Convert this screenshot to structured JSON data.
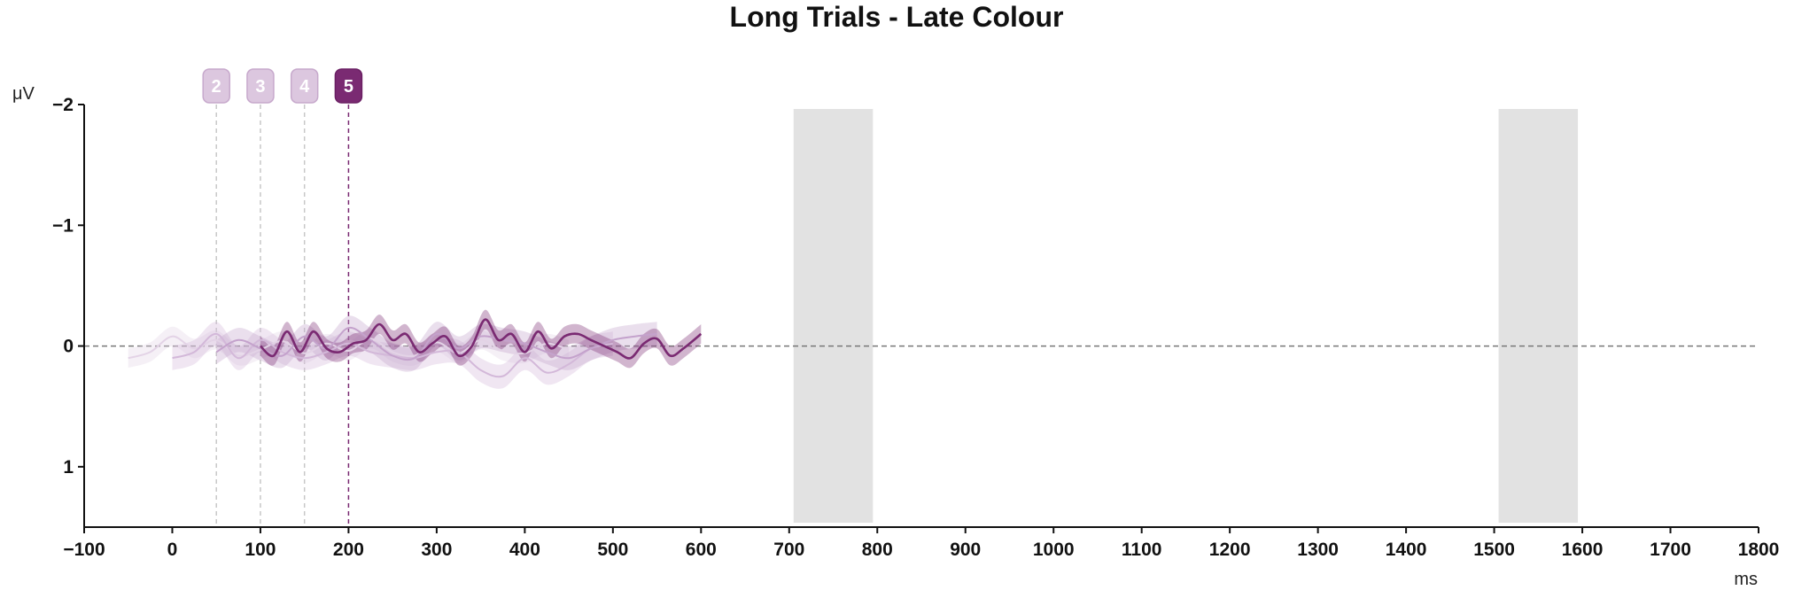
{
  "chart_data": {
    "type": "line",
    "title": "Long Trials - Late Colour",
    "xlabel": "ms",
    "ylabel": "μV",
    "xlim": [
      -100,
      1800
    ],
    "ylim": [
      1.5,
      -2
    ],
    "y_inverted": true,
    "x_ticks": [
      -100,
      0,
      100,
      200,
      300,
      400,
      500,
      600,
      700,
      800,
      900,
      1000,
      1100,
      1200,
      1300,
      1400,
      1500,
      1600,
      1700,
      1800
    ],
    "y_ticks": [
      -2,
      -1,
      0,
      1
    ],
    "x_tick_labels": [
      "−100",
      "0",
      "100",
      "200",
      "300",
      "400",
      "500",
      "600",
      "700",
      "800",
      "900",
      "1000",
      "1100",
      "1200",
      "1300",
      "1400",
      "1500",
      "1600",
      "1700",
      "1800"
    ],
    "y_tick_labels": [
      "−2",
      "−1",
      "0",
      "1"
    ],
    "zero_line": true,
    "grid": false,
    "shaded_regions": [
      {
        "x": [
          705,
          795
        ]
      },
      {
        "x": [
          1505,
          1595
        ]
      }
    ],
    "markers": [
      {
        "label": "2",
        "x": 50,
        "active": false
      },
      {
        "label": "3",
        "x": 100,
        "active": false
      },
      {
        "label": "4",
        "x": 150,
        "active": false
      },
      {
        "label": "5",
        "x": 200,
        "active": true
      }
    ],
    "series": [
      {
        "x": [
          -50,
          -25,
          0,
          25,
          50,
          75,
          100,
          125,
          150,
          175,
          200,
          225,
          250,
          275,
          300,
          325,
          350,
          375,
          400,
          425,
          450
        ],
        "values": [
          0.1,
          0.05,
          -0.08,
          0.02,
          -0.05,
          0.08,
          0.03,
          -0.04,
          0.06,
          -0.02,
          0.04,
          -0.06,
          0.05,
          0.08,
          -0.03,
          0.06,
          -0.05,
          0.04,
          0.06,
          -0.02,
          0.03
        ],
        "color": "#e3d3e6",
        "band": 0.08
      },
      {
        "x": [
          0,
          25,
          50,
          75,
          100,
          125,
          150,
          175,
          200,
          225,
          250,
          275,
          300,
          325,
          350,
          375,
          400,
          425,
          450,
          475,
          500
        ],
        "values": [
          0.1,
          0.05,
          -0.1,
          0.1,
          -0.05,
          0.05,
          0.1,
          0.05,
          -0.02,
          0.05,
          0.08,
          0.1,
          0.05,
          0.05,
          0.2,
          0.25,
          0.1,
          0.22,
          0.15,
          0.02,
          -0.02
        ],
        "color": "#d3b8d9",
        "band": 0.1
      },
      {
        "x": [
          50,
          75,
          100,
          125,
          150,
          175,
          200,
          225,
          250,
          275,
          300,
          325,
          350,
          375,
          400,
          425,
          450,
          475,
          500,
          525,
          550
        ],
        "values": [
          0.05,
          -0.05,
          0.02,
          0.08,
          -0.08,
          0.02,
          -0.15,
          -0.05,
          0.08,
          0.1,
          -0.1,
          0.02,
          -0.08,
          -0.05,
          -0.02,
          0.05,
          0.1,
          0.02,
          -0.05,
          -0.08,
          -0.1
        ],
        "color": "#c4a2cc",
        "band": 0.1
      },
      {
        "x": [
          100,
          115,
          130,
          145,
          160,
          175,
          190,
          205,
          220,
          235,
          250,
          265,
          280,
          295,
          310,
          325,
          340,
          355,
          370,
          385,
          400,
          415,
          430,
          445,
          460,
          475,
          490,
          505,
          520,
          535,
          550,
          565,
          580,
          600
        ],
        "values": [
          0.0,
          0.08,
          -0.12,
          0.05,
          -0.12,
          0.02,
          0.05,
          -0.02,
          -0.05,
          -0.18,
          -0.05,
          -0.1,
          0.05,
          -0.02,
          -0.08,
          0.08,
          0.0,
          -0.22,
          -0.05,
          -0.1,
          0.05,
          -0.12,
          0.02,
          -0.08,
          -0.1,
          -0.05,
          0.0,
          0.05,
          0.1,
          -0.02,
          -0.06,
          0.08,
          0.02,
          -0.1
        ],
        "color": "#7a2a72",
        "band": 0.08
      }
    ]
  }
}
